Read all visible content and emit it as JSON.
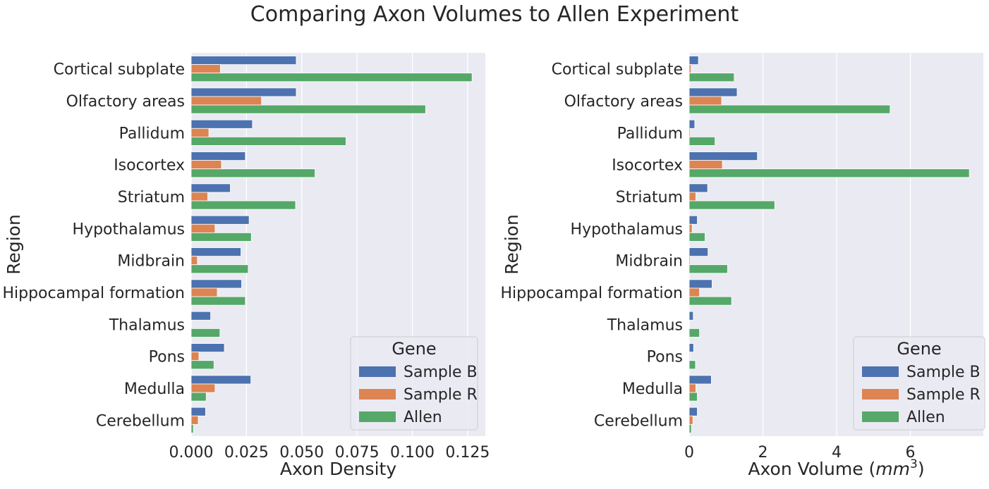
{
  "figure": {
    "suptitle": "Comparing Axon Volumes to Allen Experiment"
  },
  "colors": {
    "Sample B": "#4c72b0",
    "Sample R": "#dd8452",
    "Allen": "#55a868",
    "axes_bg": "#eaeaf2",
    "grid": "#ffffff"
  },
  "chart_data": [
    {
      "type": "bar",
      "orientation": "horizontal",
      "categories": [
        "Cortical subplate",
        "Olfactory areas",
        "Pallidum",
        "Isocortex",
        "Striatum",
        "Hypothalamus",
        "Midbrain",
        "Hippocampal formation",
        "Thalamus",
        "Pons",
        "Medulla",
        "Cerebellum"
      ],
      "series": [
        {
          "name": "Sample B",
          "values": [
            0.0475,
            0.0475,
            0.0277,
            0.0245,
            0.0177,
            0.0262,
            0.0225,
            0.0228,
            0.0088,
            0.015,
            0.027,
            0.0065
          ]
        },
        {
          "name": "Sample R",
          "values": [
            0.0132,
            0.0318,
            0.008,
            0.0137,
            0.0075,
            0.0108,
            0.0028,
            0.0118,
            0.0,
            0.0035,
            0.0108,
            0.0032
          ]
        },
        {
          "name": "Allen",
          "values": [
            0.127,
            0.106,
            0.07,
            0.056,
            0.0472,
            0.0272,
            0.0258,
            0.0245,
            0.013,
            0.0103,
            0.0068,
            0.001
          ]
        }
      ],
      "xlabel": "Axon Density",
      "ylabel": "Region",
      "xlim": [
        0,
        0.133
      ],
      "xticks": [
        0,
        0.025,
        0.05,
        0.075,
        0.1,
        0.125
      ],
      "xtick_labels": [
        "0.000",
        "0.025",
        "0.050",
        "0.075",
        "0.100",
        "0.125"
      ],
      "grid": true,
      "legend": {
        "title": "Gene",
        "placement": "lower-right",
        "entries": [
          "Sample B",
          "Sample R",
          "Allen"
        ]
      }
    },
    {
      "type": "bar",
      "orientation": "horizontal",
      "categories": [
        "Cortical subplate",
        "Olfactory areas",
        "Pallidum",
        "Isocortex",
        "Striatum",
        "Hypothalamus",
        "Midbrain",
        "Hippocampal formation",
        "Thalamus",
        "Pons",
        "Medulla",
        "Cerebellum"
      ],
      "series": [
        {
          "name": "Sample B",
          "values": [
            0.25,
            1.3,
            0.15,
            1.85,
            0.5,
            0.22,
            0.51,
            0.62,
            0.11,
            0.12,
            0.6,
            0.22
          ]
        },
        {
          "name": "Sample R",
          "values": [
            0.05,
            0.88,
            0.03,
            0.9,
            0.18,
            0.08,
            0.03,
            0.28,
            0.0,
            0.02,
            0.18,
            0.1
          ]
        },
        {
          "name": "Allen",
          "values": [
            1.22,
            5.45,
            0.7,
            7.6,
            2.32,
            0.43,
            1.04,
            1.15,
            0.28,
            0.17,
            0.22,
            0.06
          ]
        }
      ],
      "xlabel": "Axon Volume (",
      "xlabel_math": "mm",
      "xlabel_sup": "3",
      "xlabel_close": ")",
      "ylabel": "Region",
      "xlim": [
        0,
        7.98
      ],
      "xticks": [
        0,
        2,
        4,
        6
      ],
      "xtick_labels": [
        "0",
        "2",
        "4",
        "6"
      ],
      "grid": true,
      "legend": {
        "title": "Gene",
        "placement": "lower-right",
        "entries": [
          "Sample B",
          "Sample R",
          "Allen"
        ]
      }
    }
  ]
}
